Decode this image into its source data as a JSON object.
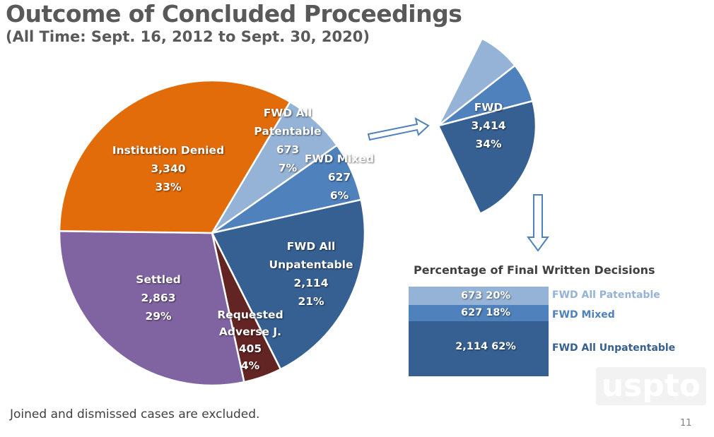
{
  "title": "Outcome of Concluded Proceedings",
  "subtitle": "(All Time: Sept. 16, 2012 to Sept. 30, 2020)",
  "footnote": "Joined and dismissed cases are excluded.",
  "page_number": "11",
  "logo": "uspto",
  "chart_data": [
    {
      "type": "pie",
      "slices": [
        {
          "name": "FWD All Patentable",
          "label_lines": [
            "FWD All",
            "Patentable"
          ],
          "value": 673,
          "value_label": "673",
          "percent": "7%",
          "color": "#95B3D7"
        },
        {
          "name": "FWD Mixed",
          "label_lines": [
            "FWD Mixed"
          ],
          "value": 627,
          "value_label": "627",
          "percent": "6%",
          "color": "#4F81BD"
        },
        {
          "name": "FWD All Unpatentable",
          "label_lines": [
            "FWD All",
            "Unpatentable"
          ],
          "value": 2114,
          "value_label": "2,114",
          "percent": "21%",
          "color": "#376092"
        },
        {
          "name": "Requested Adverse J.",
          "label_lines": [
            "Requested",
            "Adverse J."
          ],
          "value": 405,
          "value_label": "405",
          "percent": "4%",
          "color": "#632523"
        },
        {
          "name": "Settled",
          "label_lines": [
            "Settled"
          ],
          "value": 2863,
          "value_label": "2,863",
          "percent": "29%",
          "color": "#8064A2"
        },
        {
          "name": "Institution Denied",
          "label_lines": [
            "Institution Denied"
          ],
          "value": 3340,
          "value_label": "3,340",
          "percent": "33%",
          "color": "#E36C0A"
        }
      ],
      "breakout": {
        "label": "FWD",
        "value_label": "3,414",
        "percent": "34%"
      }
    },
    {
      "type": "bar",
      "stacked": true,
      "title": "Percentage of Final Written Decisions",
      "segments": [
        {
          "name": "FWD All Patentable",
          "value": 673,
          "label": "673 20%",
          "color": "#95B3D7"
        },
        {
          "name": "FWD Mixed",
          "value": 627,
          "label": "627 18%",
          "color": "#4F81BD"
        },
        {
          "name": "FWD All Unpatentable",
          "value": 2114,
          "label": "2,114 62%",
          "color": "#376092"
        }
      ]
    }
  ]
}
